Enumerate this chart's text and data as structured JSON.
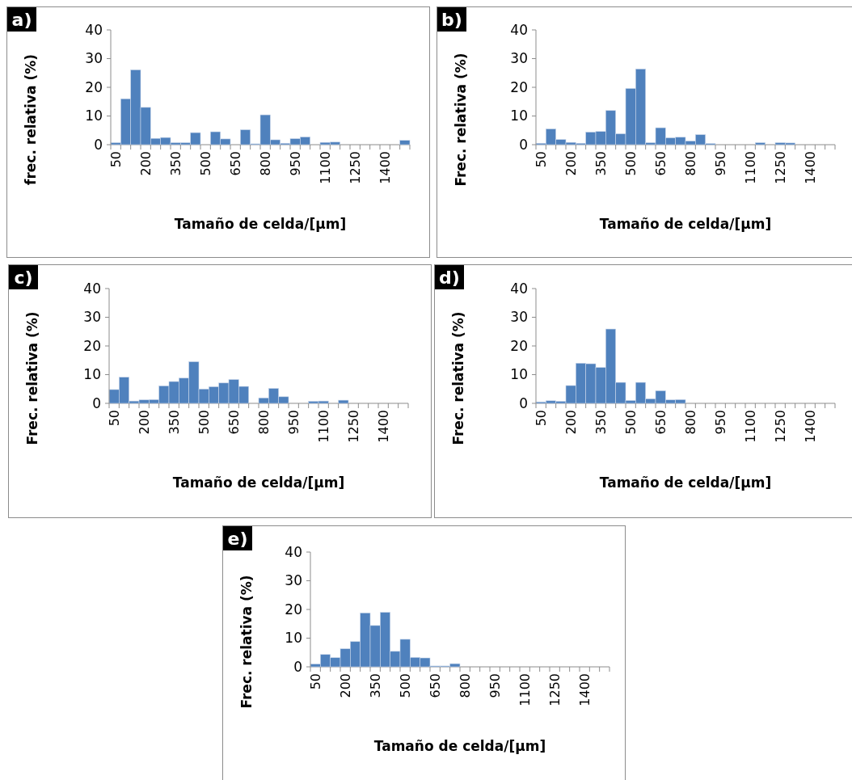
{
  "chart_data": [
    {
      "type": "bar",
      "title": "a)",
      "xlabel": "Tamaño de celda/[µm]",
      "ylabel": "frec. relativa (%)",
      "categories": [
        "50",
        null,
        null,
        "200",
        null,
        null,
        "350",
        null,
        null,
        "500",
        null,
        null,
        "650",
        null,
        null,
        "800",
        null,
        null,
        "950",
        null,
        null,
        "1100",
        null,
        null,
        "1250",
        null,
        null,
        "1400",
        null,
        null
      ],
      "color": "#4f81bd",
      "ylim": [
        0,
        40
      ],
      "yticks": [
        0,
        10,
        20,
        30,
        40
      ],
      "values": [
        0.7,
        16,
        26.1,
        13,
        2.2,
        2.5,
        0.7,
        0.7,
        4.2,
        0,
        4.5,
        2,
        0,
        5.2,
        0.3,
        10.4,
        1.7,
        0.5,
        2.1,
        2.7,
        0,
        0.8,
        0.9,
        0,
        0,
        0,
        0,
        0,
        0,
        1.5
      ]
    },
    {
      "type": "bar",
      "title": "b)",
      "xlabel": "Tamaño de celda/[µm]",
      "ylabel": "Frec. relativa (%)",
      "categories": [
        "50",
        null,
        null,
        "200",
        null,
        null,
        "350",
        null,
        null,
        "500",
        null,
        null,
        "650",
        null,
        null,
        "800",
        null,
        null,
        "950",
        null,
        null,
        "1100",
        null,
        null,
        "1250",
        null,
        null,
        "1400",
        null,
        null
      ],
      "color": "#4f81bd",
      "ylim": [
        0,
        40
      ],
      "yticks": [
        0,
        10,
        20,
        30,
        40
      ],
      "values": [
        0.5,
        5.5,
        1.8,
        0.8,
        0.5,
        4.4,
        4.6,
        11.9,
        3.8,
        19.6,
        26.4,
        0.7,
        5.9,
        2.4,
        2.6,
        1.3,
        3.5,
        0.4,
        0,
        0,
        0,
        0,
        0.7,
        0,
        0.7,
        0.6,
        0,
        0,
        0,
        0
      ]
    },
    {
      "type": "bar",
      "title": "c)",
      "xlabel": "Tamaño de celda/[µm]",
      "ylabel": "Frec. relativa (%)",
      "categories": [
        "50",
        null,
        null,
        "200",
        null,
        null,
        "350",
        null,
        null,
        "500",
        null,
        null,
        "650",
        null,
        null,
        "800",
        null,
        null,
        "950",
        null,
        null,
        "1100",
        null,
        null,
        "1250",
        null,
        null,
        "1400",
        null,
        null
      ],
      "color": "#4f81bd",
      "ylim": [
        0,
        40
      ],
      "yticks": [
        0,
        10,
        20,
        30,
        40
      ],
      "values": [
        4.8,
        9.1,
        0.8,
        1.2,
        1.3,
        6.1,
        7.6,
        8.8,
        14.5,
        5,
        5.8,
        7.1,
        8.3,
        5.9,
        0,
        1.9,
        5.2,
        2.3,
        0,
        0,
        0.7,
        0.8,
        0,
        1.1,
        0,
        0,
        0,
        0,
        0,
        0
      ]
    },
    {
      "type": "bar",
      "title": "d)",
      "xlabel": "Tamaño de celda/[µm]",
      "ylabel": "Frec. relativa (%)",
      "categories": [
        "50",
        null,
        null,
        "200",
        null,
        null,
        "350",
        null,
        null,
        "500",
        null,
        null,
        "650",
        null,
        null,
        "800",
        null,
        null,
        "950",
        null,
        null,
        "1100",
        null,
        null,
        "1250",
        null,
        null,
        "1400",
        null,
        null
      ],
      "color": "#4f81bd",
      "ylim": [
        0,
        40
      ],
      "yticks": [
        0,
        10,
        20,
        30,
        40
      ],
      "values": [
        0.5,
        0.9,
        0.7,
        6.2,
        14,
        13.8,
        12.5,
        25.9,
        7.3,
        1,
        7.3,
        1.6,
        4.4,
        1.2,
        1.3,
        0,
        0,
        0,
        0,
        0,
        0,
        0,
        0,
        0,
        0,
        0,
        0,
        0,
        0,
        0
      ]
    },
    {
      "type": "bar",
      "title": "e)",
      "xlabel": "Tamaño de celda/[µm]",
      "ylabel": "Frec. relativa (%)",
      "categories": [
        "50",
        null,
        null,
        "200",
        null,
        null,
        "350",
        null,
        null,
        "500",
        null,
        null,
        "650",
        null,
        null,
        "800",
        null,
        null,
        "950",
        null,
        null,
        "1100",
        null,
        null,
        "1250",
        null,
        null,
        "1400",
        null,
        null
      ],
      "color": "#4f81bd",
      "ylim": [
        0,
        40
      ],
      "yticks": [
        0,
        10,
        20,
        30,
        40
      ],
      "values": [
        1,
        4.3,
        3.2,
        6.3,
        8.8,
        18.8,
        14.4,
        19,
        5.4,
        9.6,
        3.3,
        3.1,
        0.3,
        0.3,
        1.1,
        0,
        0,
        0,
        0,
        0,
        0,
        0,
        0,
        0,
        0,
        0,
        0,
        0,
        0,
        0
      ]
    }
  ]
}
